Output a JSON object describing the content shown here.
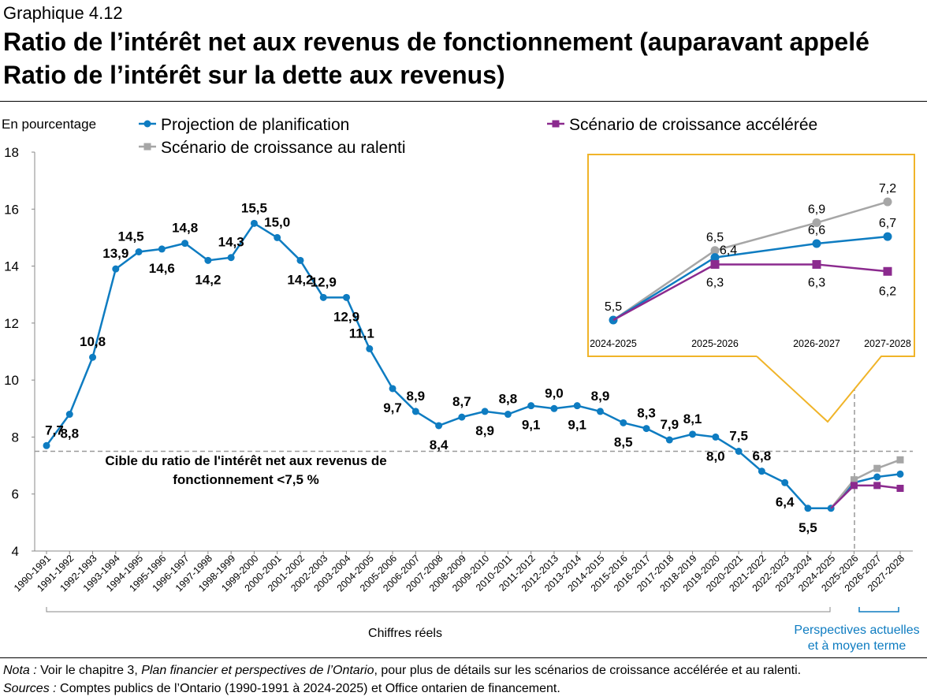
{
  "header": {
    "label": "Graphique 4.12",
    "title": "Ratio de l’intérêt net aux revenus de fonctionnement (auparavant appelé Ratio de l’intérêt sur la dette aux revenus)"
  },
  "chart_data": {
    "type": "line",
    "ylabel": "En pourcentage",
    "ylim": [
      4,
      18
    ],
    "yticks": [
      "4",
      "6",
      "8",
      "10",
      "12",
      "14",
      "16",
      "18"
    ],
    "grid": false,
    "legend_placement": "top",
    "categories": [
      "1990-1991",
      "1991-1992",
      "1992-1993",
      "1993-1994",
      "1994-1995",
      "1995-1996",
      "1996-1997",
      "1997-1998",
      "1998-1999",
      "1999-2000",
      "2000-2001",
      "2001-2002",
      "2002-2003",
      "2003-2004",
      "2004-2005",
      "2005-2006",
      "2006-2007",
      "2007-2008",
      "2008-2009",
      "2009-2010",
      "2010-2011",
      "2011-2012",
      "2012-2013",
      "2013-2014",
      "2014-2015",
      "2015-2016",
      "2016-2017",
      "2017-2018",
      "2018-2019",
      "2019-2020",
      "2020-2021",
      "2021-2022",
      "2022-2023",
      "2023-2024",
      "2024-2025",
      "2025-2026",
      "2026-2027",
      "2027-2028"
    ],
    "series": [
      {
        "name": "Projection de planification",
        "color": "#0e7cc1",
        "marker": "circle",
        "values": [
          7.7,
          8.8,
          10.8,
          13.9,
          14.5,
          14.6,
          14.8,
          14.2,
          14.3,
          15.5,
          15.0,
          14.2,
          12.9,
          12.9,
          11.1,
          9.7,
          8.9,
          8.4,
          8.7,
          8.9,
          8.8,
          9.1,
          9.0,
          9.1,
          8.9,
          8.5,
          8.3,
          7.9,
          8.1,
          8.0,
          7.5,
          6.8,
          6.4,
          5.5,
          5.5,
          6.4,
          6.6,
          6.7
        ],
        "labels": [
          "7,7",
          "8,8",
          "10,8",
          "13,9",
          "14,5",
          "14,6",
          "14,8",
          "14,2",
          "14,3",
          "15,5",
          "15,0",
          "14,2",
          "12,9",
          "12,9",
          "11,1",
          "9,7",
          "8,9",
          "8,4",
          "8,7",
          "8,9",
          "8,8",
          "9,1",
          "9,0",
          "9,1",
          "8,9",
          "8,5",
          "8,3",
          "7,9",
          "8,1",
          "8,0",
          "7,5",
          "6,8",
          "6,4",
          "5,5",
          "",
          "",
          "",
          ""
        ]
      },
      {
        "name": "Scénario de croissance au ralenti",
        "color": "#a6a6a6",
        "marker": "square",
        "values": [
          null,
          null,
          null,
          null,
          null,
          null,
          null,
          null,
          null,
          null,
          null,
          null,
          null,
          null,
          null,
          null,
          null,
          null,
          null,
          null,
          null,
          null,
          null,
          null,
          null,
          null,
          null,
          null,
          null,
          null,
          null,
          null,
          null,
          null,
          5.5,
          6.5,
          6.9,
          7.2
        ]
      },
      {
        "name": "Scénario de croissance accélérée",
        "color": "#8b2a8e",
        "marker": "square",
        "values": [
          null,
          null,
          null,
          null,
          null,
          null,
          null,
          null,
          null,
          null,
          null,
          null,
          null,
          null,
          null,
          null,
          null,
          null,
          null,
          null,
          null,
          null,
          null,
          null,
          null,
          null,
          null,
          null,
          null,
          null,
          null,
          null,
          null,
          null,
          5.5,
          6.3,
          6.3,
          6.2
        ]
      }
    ],
    "target_line": {
      "value": 7.5,
      "label_line1": "Cible du ratio de l'intérêt net aux revenus de",
      "label_line2": "fonctionnement <7,5 %"
    },
    "inset": {
      "border_color": "#f0b429",
      "categories": [
        "2024-2025",
        "2025-2026",
        "2026-2027",
        "2027-2028"
      ],
      "planification": {
        "values": [
          5.5,
          6.4,
          6.6,
          6.7
        ],
        "labels": [
          "5,5",
          "6,4",
          "6,6",
          "6,7"
        ]
      },
      "ralenti": {
        "values": [
          5.5,
          6.5,
          6.9,
          7.2
        ],
        "labels": [
          "",
          "6,5",
          "6,9",
          "7,2"
        ]
      },
      "acceleree": {
        "values": [
          5.5,
          6.3,
          6.3,
          6.2
        ],
        "labels": [
          "",
          "6,3",
          "6,3",
          "6,2"
        ]
      }
    },
    "brackets": {
      "actual": "Chiffres réels",
      "outlook_line1": "Perspectives actuelles",
      "outlook_line2": "et à moyen terme"
    }
  },
  "notes": {
    "nota_label": "Nota :",
    "nota_text1": " Voir le chapitre 3, ",
    "nota_italic": "Plan financier et perspectives de l’Ontario",
    "nota_text2": ", pour plus de détails sur les scénarios de croissance accélérée et au ralenti.",
    "sources_label": "Sources :",
    "sources_text": " Comptes publics de l’Ontario (1990-1991 à 2024-2025) et Office ontarien de financement."
  }
}
